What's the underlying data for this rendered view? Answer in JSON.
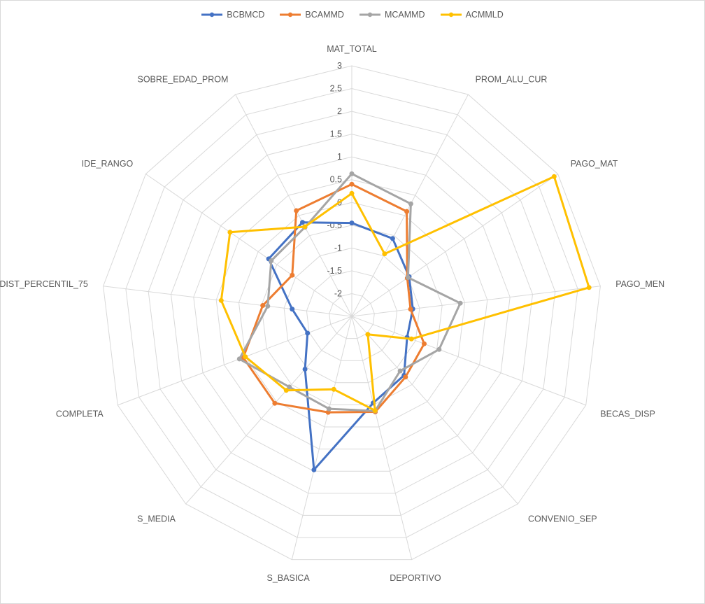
{
  "chart_data": {
    "type": "radar",
    "title": "",
    "axes": [
      "MAT_TOTAL",
      "PROM_ALU_CUR",
      "PAGO_MAT",
      "PAGO_MEN",
      "BECAS_DISP",
      "CONVENIO_SEP",
      "DEPORTIVO",
      "S_BASICA",
      "S_MEDIA",
      "COMPLETA",
      "DIST_PERCENTIL_75",
      "IDE_RANGO",
      "SOBRE_EDAD_PROM"
    ],
    "rlim": [
      -2.5,
      3
    ],
    "ticks": [
      -2,
      -1.5,
      -1,
      -0.5,
      0,
      0.5,
      1,
      1.5,
      2,
      2.5,
      3
    ],
    "tick_labels": [
      "-2",
      "-1.5",
      "-1",
      "-0.5",
      "0",
      "0.5",
      "1",
      "1.5",
      "2",
      "2.5",
      "3"
    ],
    "legend_position": "top",
    "grid": true,
    "series": [
      {
        "name": "BCBMCD",
        "color": "#4472C4",
        "values": [
          -0.45,
          -0.57,
          -0.97,
          -1.15,
          -1.2,
          -0.77,
          -0.54,
          0.97,
          -0.95,
          -1.46,
          -1.18,
          -0.28,
          -0.17
        ]
      },
      {
        "name": "BCAMMD",
        "color": "#ED7D31",
        "values": [
          0.4,
          0.1,
          -1.02,
          -1.2,
          -0.8,
          -0.72,
          -0.34,
          -0.33,
          0.05,
          0.05,
          -0.53,
          -0.91,
          0.12
        ]
      },
      {
        "name": "MCAMMD",
        "color": "#A5A5A5",
        "values": [
          0.63,
          0.29,
          -1.0,
          -0.1,
          -0.45,
          -0.9,
          -0.36,
          -0.41,
          -0.43,
          0.14,
          -0.64,
          -0.35,
          -0.29
        ]
      },
      {
        "name": "ACMMLD",
        "color": "#FFC000",
        "values": [
          0.2,
          -0.95,
          2.9,
          2.75,
          -1.1,
          -1.97,
          -0.37,
          -0.85,
          -0.33,
          0.0,
          0.39,
          0.75,
          -0.28
        ]
      }
    ]
  }
}
